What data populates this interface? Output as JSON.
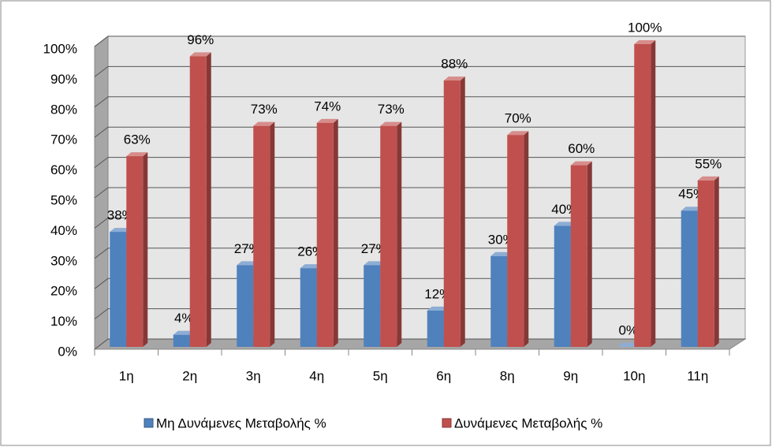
{
  "chart_data": {
    "type": "bar3d",
    "categories": [
      "1η",
      "2η",
      "3η",
      "4η",
      "5η",
      "6η",
      "8η",
      "9η",
      "10η",
      "11η"
    ],
    "series": [
      {
        "name": "Μη Δυνάμενες Μεταβολής %",
        "color": "#4f81bd",
        "values": [
          38,
          4,
          27,
          26,
          27,
          12,
          30,
          40,
          0,
          45
        ],
        "value_labels": [
          "38%",
          "4%",
          "27%",
          "26%",
          "27%",
          "12%",
          "30%",
          "40%",
          "0%",
          "45%"
        ]
      },
      {
        "name": "Δυνάμενες Μεταβολής %",
        "color": "#c0504d",
        "values": [
          63,
          96,
          73,
          74,
          73,
          88,
          70,
          60,
          100,
          55
        ],
        "value_labels": [
          "63%",
          "96%",
          "73%",
          "74%",
          "73%",
          "88%",
          "70%",
          "60%",
          "100%",
          "55%"
        ]
      }
    ],
    "ylim": [
      0,
      100
    ],
    "yticks": [
      {
        "value": 0,
        "label": "0%"
      },
      {
        "value": 10,
        "label": "10%"
      },
      {
        "value": 20,
        "label": "20%"
      },
      {
        "value": 30,
        "label": "30%"
      },
      {
        "value": 40,
        "label": "40%"
      },
      {
        "value": 50,
        "label": "50%"
      },
      {
        "value": 60,
        "label": "60%"
      },
      {
        "value": 70,
        "label": "70%"
      },
      {
        "value": 80,
        "label": "80%"
      },
      {
        "value": 90,
        "label": "90%"
      },
      {
        "value": 100,
        "label": "100%"
      }
    ],
    "grid": true,
    "legend": "bottom"
  }
}
